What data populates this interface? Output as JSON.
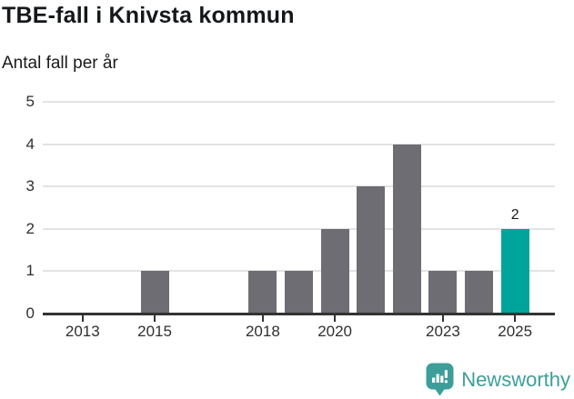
{
  "header": {
    "title": "TBE-fall i Knivsta kommun",
    "subtitle": "Antal fall per år"
  },
  "chart_data": {
    "type": "bar",
    "title": "TBE-fall i Knivsta kommun",
    "subtitle": "Antal fall per år",
    "categories": [
      "2013",
      "2014",
      "2015",
      "2016",
      "2017",
      "2018",
      "2019",
      "2020",
      "2021",
      "2022",
      "2023",
      "2024",
      "2025"
    ],
    "values": [
      0,
      0,
      1,
      0,
      0,
      1,
      1,
      2,
      3,
      4,
      1,
      1,
      2
    ],
    "highlight_category": "2025",
    "highlight_value_label": "2",
    "x_tick_labels": [
      "2013",
      "2015",
      "2018",
      "2020",
      "2023",
      "2025"
    ],
    "y_tick_labels": [
      "0",
      "1",
      "2",
      "3",
      "4",
      "5"
    ],
    "ylim": [
      0,
      5
    ],
    "grid": "horizontal-only",
    "legend": "none",
    "colors": {
      "bar": "#6d6d73",
      "highlight": "#00a49b",
      "grid": "#e3e3e3",
      "axis": "#333333",
      "text": "#1a1a1a"
    }
  },
  "footer": {
    "brand": "Newsworthy",
    "logo_icon": "newsworthy-bar-chart-bubble-icon",
    "brand_color": "#3d9e99"
  }
}
